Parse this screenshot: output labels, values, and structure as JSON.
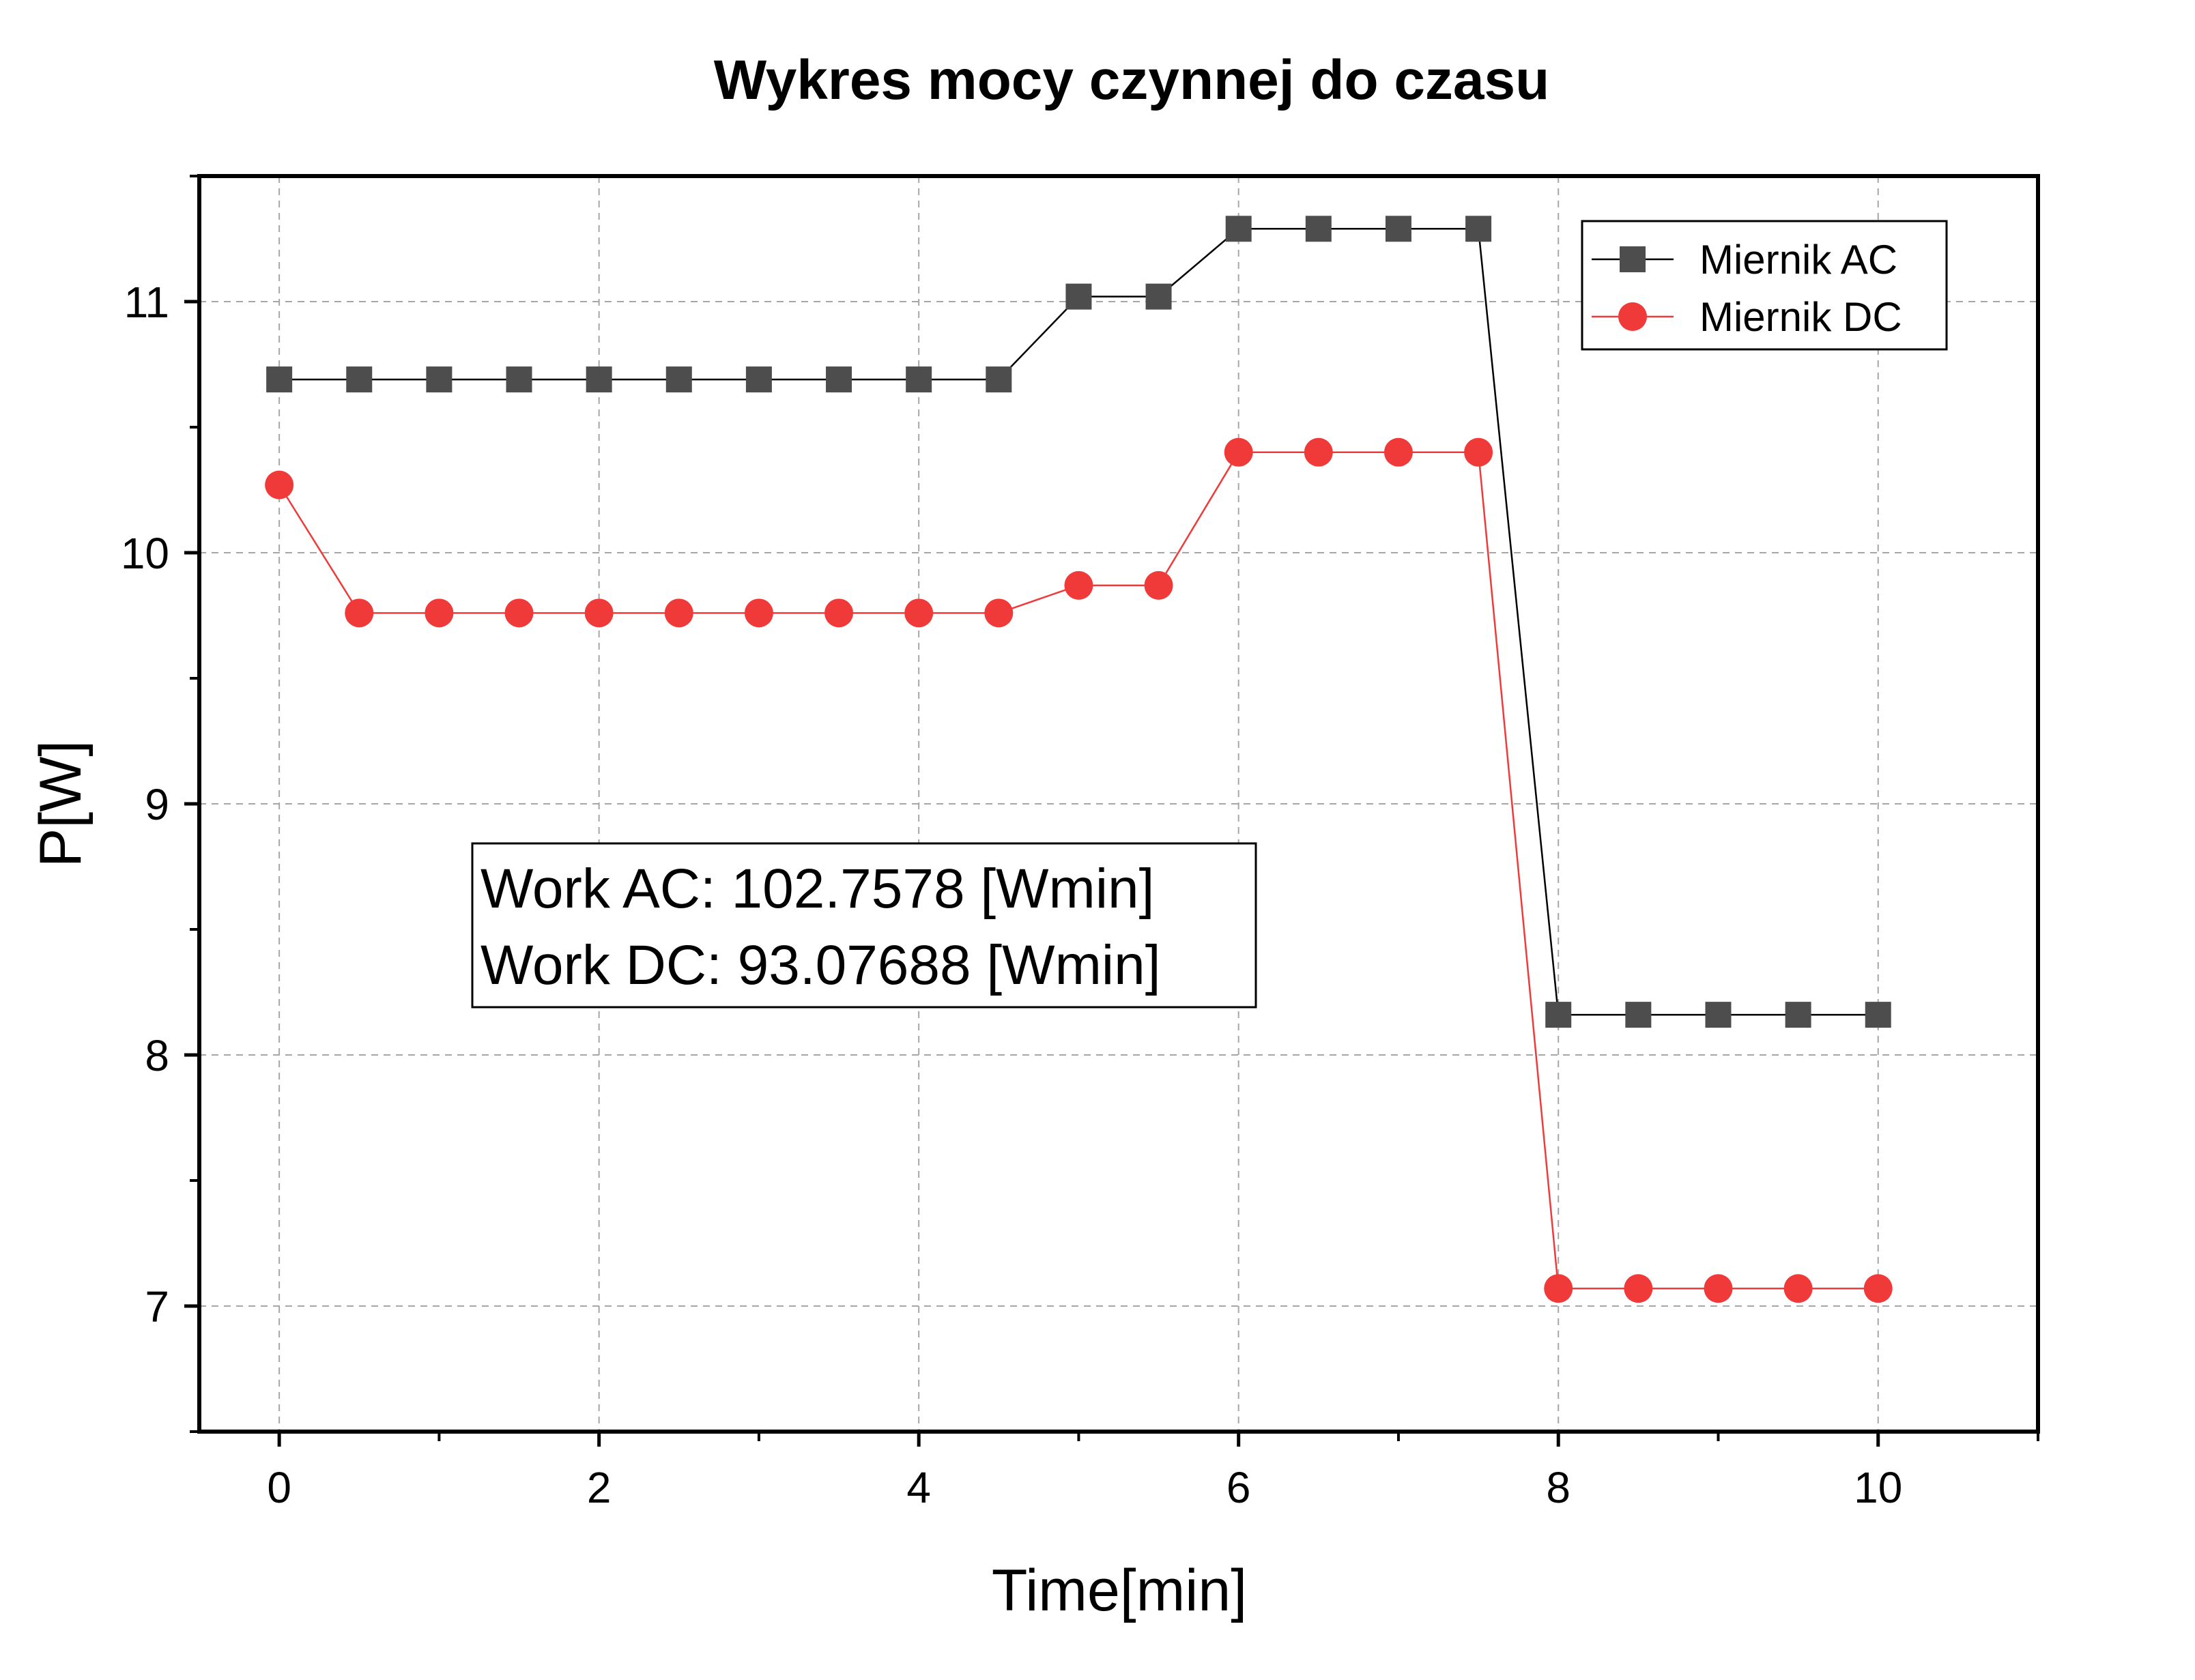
{
  "chart_data": {
    "type": "line",
    "title": "Wykres mocy czynnej do czasu",
    "xlabel": "Time[min]",
    "ylabel": "P[W]",
    "xlim": [
      -0.5,
      11
    ],
    "ylim": [
      6.5,
      11.5
    ],
    "xticks": [
      "0",
      "2",
      "4",
      "6",
      "8",
      "10"
    ],
    "yticks": [
      "7",
      "8",
      "9",
      "10",
      "11"
    ],
    "grid": true,
    "legend_position": "top-right",
    "x": [
      0,
      0.5,
      1,
      1.5,
      2,
      2.5,
      3,
      3.5,
      4,
      4.5,
      5,
      5.5,
      6,
      6.5,
      7,
      7.5,
      8,
      8.5,
      9,
      9.5,
      10
    ],
    "series": [
      {
        "name": "Miernik AC",
        "marker": "square",
        "color": "#4d4d4d",
        "line_color": "#000000",
        "values": [
          10.69,
          10.69,
          10.69,
          10.69,
          10.69,
          10.69,
          10.69,
          10.69,
          10.69,
          10.69,
          11.02,
          11.02,
          11.29,
          11.29,
          11.29,
          11.29,
          8.16,
          8.16,
          8.16,
          8.16,
          8.16
        ]
      },
      {
        "name": "Miernik DC",
        "marker": "circle",
        "color": "#f03a3a",
        "line_color": "#f03a3a",
        "values": [
          10.27,
          9.76,
          9.76,
          9.76,
          9.76,
          9.76,
          9.76,
          9.76,
          9.76,
          9.76,
          9.87,
          9.87,
          10.4,
          10.4,
          10.4,
          10.4,
          7.07,
          7.07,
          7.07,
          7.07,
          7.07
        ]
      }
    ],
    "annotations": [
      "Work AC: 102.7578 [Wmin]",
      "Work DC: 93.07688 [Wmin]"
    ]
  }
}
